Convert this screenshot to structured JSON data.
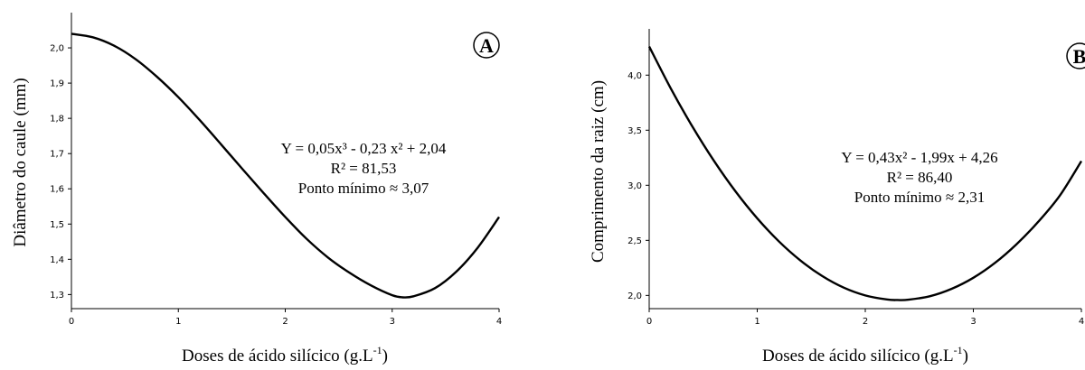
{
  "chart_data": [
    {
      "type": "line",
      "panel_label": "A",
      "xlabel": "Doses de ácido silícico (g.L",
      "xlabel_sup": "-1",
      "xlabel_end": ")",
      "ylabel": "Diâmetro do caule (mm)",
      "xlim": [
        0,
        4
      ],
      "ylim": [
        1.26,
        2.1
      ],
      "xticks": [
        0,
        1,
        2,
        3,
        4
      ],
      "xtick_labels": [
        "0",
        "1",
        "2",
        "3",
        "4"
      ],
      "yticks": [
        1.3,
        1.4,
        1.5,
        1.6,
        1.7,
        1.8,
        1.9,
        2.0
      ],
      "ytick_labels": [
        "1,3",
        "1,4",
        "1,5",
        "1,6",
        "1,7",
        "1,8",
        "1,9",
        "2,0"
      ],
      "equation": "Y = 0,05x³ - 0,23 x² + 2,04",
      "r_squared": "R² = 81,53",
      "min_point": "Ponto mínimo ≈ 3,07",
      "x": [
        0,
        0.2,
        0.4,
        0.6,
        0.8,
        1.0,
        1.2,
        1.4,
        1.6,
        1.8,
        2.0,
        2.2,
        2.4,
        2.6,
        2.8,
        3.0,
        3.1,
        3.2,
        3.4,
        3.6,
        3.8,
        4.0
      ],
      "y": [
        2.04,
        2.03,
        2.006,
        1.968,
        1.918,
        1.86,
        1.795,
        1.726,
        1.656,
        1.587,
        1.52,
        1.458,
        1.405,
        1.362,
        1.326,
        1.298,
        1.292,
        1.295,
        1.318,
        1.365,
        1.433,
        1.52
      ]
    },
    {
      "type": "line",
      "panel_label": "B",
      "xlabel": "Doses de ácido silícico (g.L",
      "xlabel_sup": "-1",
      "xlabel_end": ")",
      "ylabel": "Comprimento da raiz  (cm)",
      "xlim": [
        0,
        4
      ],
      "ylim": [
        1.88,
        4.42
      ],
      "xticks": [
        0,
        1,
        2,
        3,
        4
      ],
      "xtick_labels": [
        "0",
        "1",
        "2",
        "3",
        "4"
      ],
      "yticks": [
        2.0,
        2.5,
        3.0,
        3.5,
        4.0
      ],
      "ytick_labels": [
        "2,0",
        "2,5",
        "3,0",
        "3,5",
        "4,0"
      ],
      "equation": "Y = 0,43x² - 1,99x + 4,26",
      "r_squared": "R² = 86,40",
      "min_point": "Ponto mínimo ≈ 2,31",
      "x": [
        0,
        0.2,
        0.4,
        0.6,
        0.8,
        1.0,
        1.2,
        1.4,
        1.6,
        1.8,
        2.0,
        2.2,
        2.3,
        2.4,
        2.6,
        2.8,
        3.0,
        3.2,
        3.4,
        3.6,
        3.8,
        4.0
      ],
      "y": [
        4.26,
        3.879,
        3.533,
        3.221,
        2.943,
        2.7,
        2.491,
        2.317,
        2.177,
        2.071,
        2.0,
        1.963,
        1.958,
        1.961,
        1.993,
        2.06,
        2.16,
        2.295,
        2.465,
        2.668,
        2.906,
        3.22
      ]
    }
  ]
}
